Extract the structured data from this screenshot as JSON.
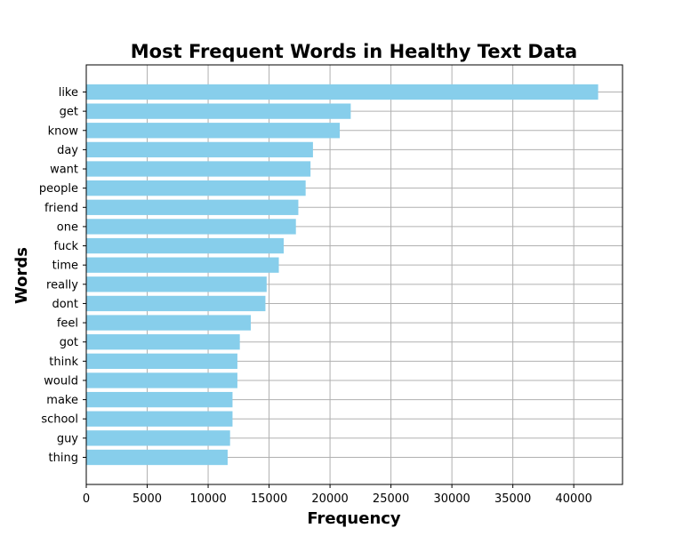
{
  "chart_data": {
    "type": "bar",
    "orientation": "horizontal",
    "title": "Most Frequent Words in Healthy Text Data",
    "xlabel": "Frequency",
    "ylabel": "Words",
    "categories": [
      "like",
      "get",
      "know",
      "day",
      "want",
      "people",
      "friend",
      "one",
      "fuck",
      "time",
      "really",
      "dont",
      "feel",
      "got",
      "think",
      "would",
      "make",
      "school",
      "guy",
      "thing"
    ],
    "values": [
      42000,
      21700,
      20800,
      18600,
      18400,
      18000,
      17400,
      17200,
      16200,
      15800,
      14800,
      14700,
      13500,
      12600,
      12400,
      12400,
      12000,
      12000,
      11800,
      11600
    ],
    "xlim": [
      0,
      44000
    ],
    "xticks": [
      0,
      5000,
      10000,
      15000,
      20000,
      25000,
      30000,
      35000,
      40000
    ],
    "grid": true,
    "bar_color": "#87ceeb"
  }
}
